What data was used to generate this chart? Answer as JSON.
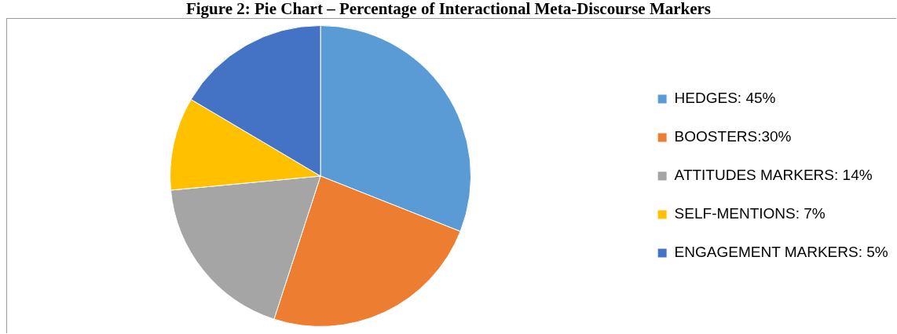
{
  "chart_data": {
    "type": "pie",
    "title": "Figure 2: Pie Chart – Percentage of Interactional Meta-Discourse Markers",
    "categories": [
      "HEDGES: 45%",
      "BOOSTERS:30%",
      "ATTITUDES MARKERS: 14%",
      "SELF-MENTIONS: 7%",
      "ENGAGEMENT MARKERS: 5%"
    ],
    "values": [
      31,
      24,
      18.5,
      10,
      16.5
    ],
    "colors": [
      "#5b9bd5",
      "#ed7d31",
      "#a5a5a5",
      "#ffc000",
      "#4472c4"
    ],
    "legend": "right"
  }
}
